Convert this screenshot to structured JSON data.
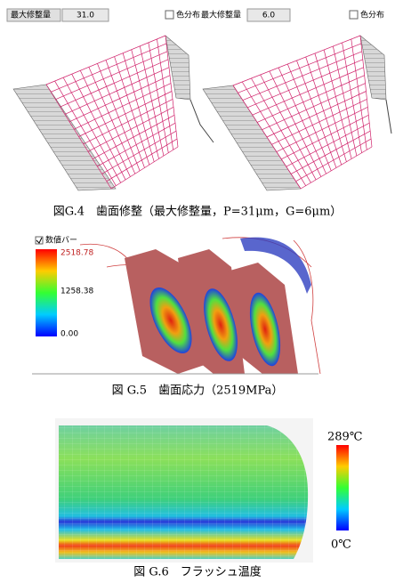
{
  "toolbar": {
    "left_label": "最大修整量",
    "left_value": "31.0",
    "middle_checkbox": "色分布",
    "middle_label": "最大修整量",
    "middle_value": "6.0",
    "right_checkbox": "色分布"
  },
  "figures": [
    {
      "caption": "図G.4　歯面修整（最大修整量，P=31μm，G=6μm）"
    },
    {
      "checkbox": "数値バー",
      "scale_max": "2518.78",
      "scale_mid": "1258.38",
      "scale_min": "0.00",
      "caption": "図 G.5　歯面応力（2519MPa）"
    },
    {
      "scale_max": "289℃",
      "scale_min": "0℃",
      "caption": "図 G.6　フラッシュ温度"
    }
  ]
}
